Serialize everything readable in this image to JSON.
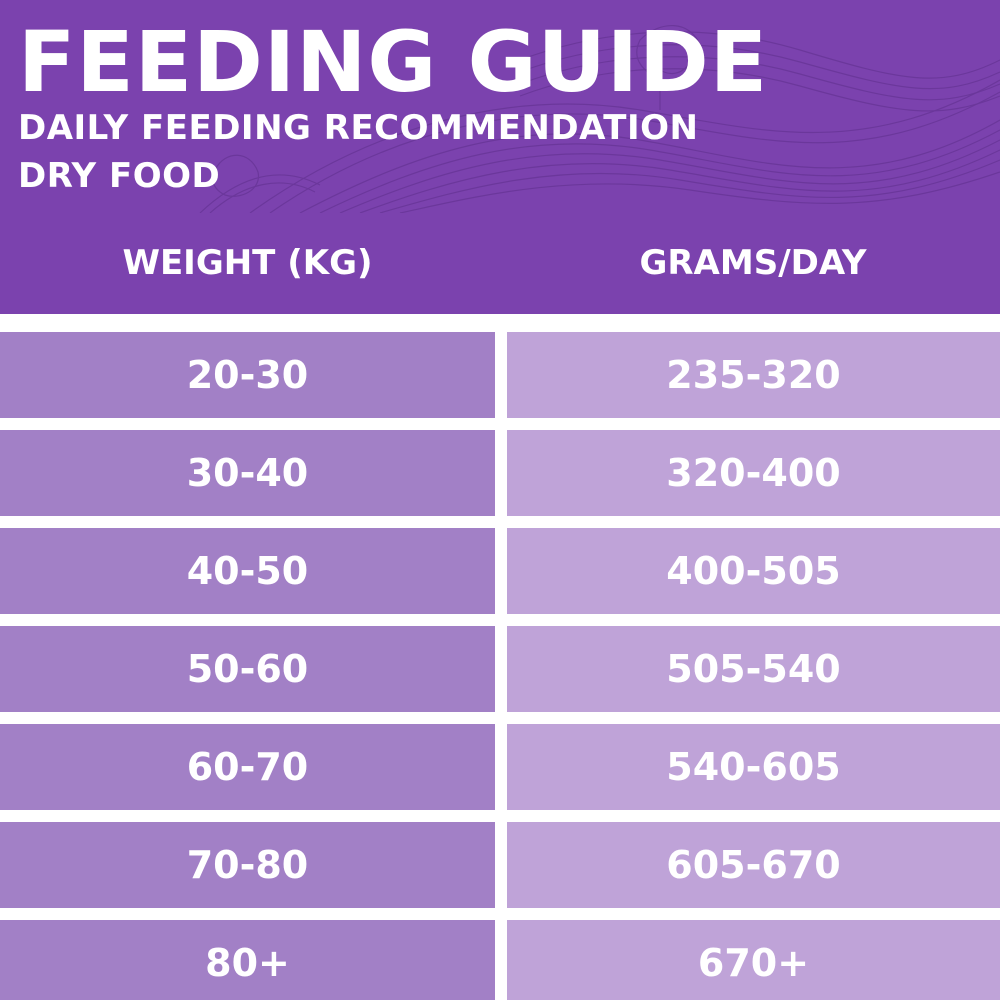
{
  "banner": {
    "title": "FEEDING GUIDE",
    "subtitle_line1": "DAILY FEEDING RECOMMENDATION",
    "subtitle_line2": "DRY FOOD"
  },
  "table": {
    "headers": [
      "WEIGHT (KG)",
      "GRAMS/DAY"
    ],
    "rows": [
      [
        "20-30",
        "235-320"
      ],
      [
        "30-40",
        "320-400"
      ],
      [
        "40-50",
        "400-505"
      ],
      [
        "50-60",
        "505-540"
      ],
      [
        "60-70",
        "540-605"
      ],
      [
        "70-80",
        "605-670"
      ],
      [
        "80+",
        "670+"
      ]
    ]
  },
  "colors": {
    "banner": "#7b42ae",
    "weight_cell": "#a280c6",
    "grams_cell": "#bfa3d8",
    "text": "#ffffff"
  }
}
